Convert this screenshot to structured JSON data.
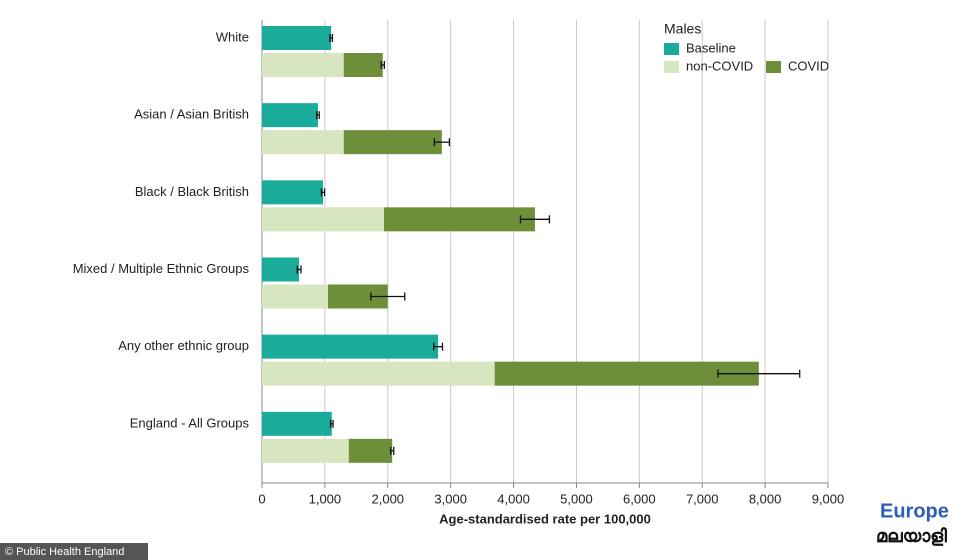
{
  "chart_data": {
    "type": "bar",
    "categories": [
      "White",
      "Asian / Asian British",
      "Black / Black British",
      "Mixed / Multiple Ethnic Groups",
      "Any other ethnic group",
      "England - All Groups"
    ],
    "series": [
      {
        "name": "Baseline",
        "color": "#1aab9b",
        "values": [
          1100,
          890,
          970,
          590,
          2800,
          1110
        ],
        "errors": [
          20,
          20,
          25,
          30,
          70,
          20
        ]
      },
      {
        "name": "non-COVID",
        "color": "#d7e5c1",
        "values": [
          1300,
          1300,
          1940,
          1050,
          3700,
          1380
        ]
      },
      {
        "name": "COVID",
        "color": "#6e8f3a",
        "values": [
          620,
          1560,
          2400,
          950,
          4200,
          690
        ],
        "errors": [
          25,
          120,
          230,
          270,
          650,
          25
        ]
      }
    ],
    "legend_title": "Males",
    "xlabel": "Age-standardised rate per 100,000",
    "xlim": [
      0,
      9000
    ],
    "xticks": [
      0,
      {
        "value": 1000,
        "label": "1,000"
      },
      {
        "value": 2000,
        "label": "2,000"
      },
      {
        "value": 3000,
        "label": "3,000"
      },
      {
        "value": 4000,
        "label": "4,000"
      },
      {
        "value": 5000,
        "label": "5,000"
      },
      {
        "value": 6000,
        "label": "6,000"
      },
      {
        "value": 7000,
        "label": "7,000"
      },
      {
        "value": 8000,
        "label": "8,000"
      },
      {
        "value": 9000,
        "label": "9,000"
      }
    ],
    "grid": true
  },
  "footer": {
    "credit": "© Public Health England",
    "logo_top": "Europe",
    "logo_bottom": "മലയാളി"
  }
}
